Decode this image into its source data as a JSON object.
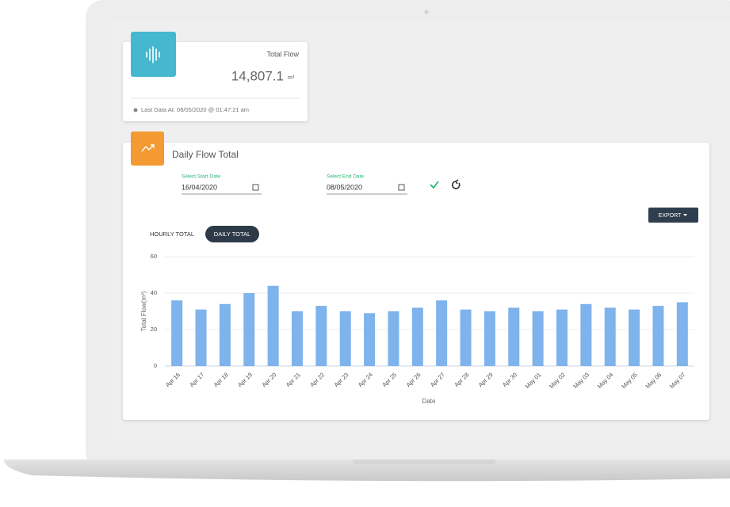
{
  "total_flow_card": {
    "label": "Total Flow",
    "value": "14,807.1",
    "unit": "m³",
    "last_data": "Last Data At: 08/05/2020 @ 01:47:21 am"
  },
  "daily_flow_card": {
    "title": "Daily Flow Total",
    "start_date_label": "Select Start Date",
    "start_date": "16/04/2020",
    "end_date_label": "Select End Date",
    "end_date": "08/05/2020",
    "export_button": "EXPORT",
    "tabs": [
      "HOURLY TOTAL",
      "DAILY TOTAL"
    ]
  },
  "chart_data": {
    "type": "bar",
    "x_label": "Date",
    "y_label": "Total Flow(m³)",
    "categories": [
      "Apr 16",
      "Apr 17",
      "Apr 18",
      "Apr 19",
      "Apr 20",
      "Apr 21",
      "Apr 22",
      "Apr 23",
      "Apr 24",
      "Apr 25",
      "Apr 26",
      "Apr 27",
      "Apr 28",
      "Apr 29",
      "Apr 30",
      "May 01",
      "May 02",
      "May 03",
      "May 04",
      "May 05",
      "May 06",
      "May 07"
    ],
    "values": [
      36,
      31,
      34,
      40,
      44,
      30,
      33,
      30,
      29,
      30,
      32,
      36,
      31,
      30,
      32,
      30,
      31,
      34,
      32,
      31,
      33,
      35
    ],
    "color": "#7eb3eb",
    "ylim": [
      0,
      60
    ],
    "yticks": [
      0,
      20,
      40,
      60
    ],
    "grid": true
  }
}
